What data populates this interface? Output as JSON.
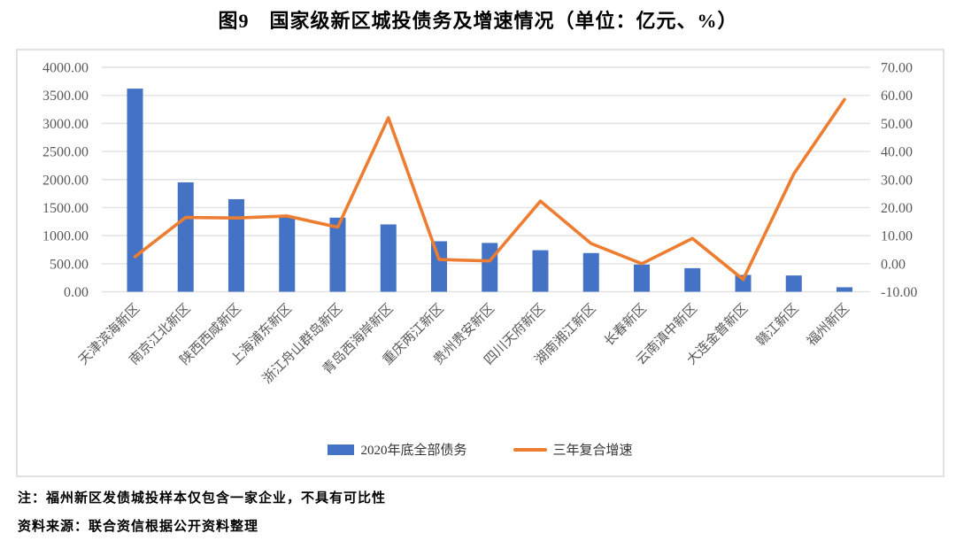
{
  "title": "图9　国家级新区城投债务及增速情况（单位：亿元、%）",
  "legend": {
    "bar_label": "2020年底全部债务",
    "line_label": "三年复合增速"
  },
  "notes": {
    "note1": "注：福州新区发债城投样本仅包含一家企业，不具有可比性",
    "source": "资料来源：联合资信根据公开资料整理"
  },
  "colors": {
    "bar": "#4472C4",
    "line": "#ED7D31",
    "grid": "#E2E2E2",
    "axis_text": "#595959",
    "border": "#E2E2E2"
  },
  "chart_data": {
    "type": "bar",
    "subtype": "bar+line combo, dual axis",
    "title": "图9　国家级新区城投债务及增速情况（单位：亿元、%）",
    "grid": true,
    "legend_position": "bottom",
    "categories": [
      "天津滨海新区",
      "南京江北新区",
      "陕西西咸新区",
      "上海浦东新区",
      "浙江舟山群岛新区",
      "青岛西海岸新区",
      "重庆两江新区",
      "贵州贵安新区",
      "四川天府新区",
      "湖南湘江新区",
      "长春新区",
      "云南滇中新区",
      "大连金普新区",
      "赣江新区",
      "福州新区"
    ],
    "series": [
      {
        "name": "2020年底全部债务",
        "type": "bar",
        "axis": "left",
        "unit": "亿元",
        "values": [
          3620,
          1950,
          1650,
          1330,
          1320,
          1200,
          900,
          870,
          740,
          690,
          485,
          420,
          300,
          290,
          80
        ]
      },
      {
        "name": "三年复合增速",
        "type": "line",
        "axis": "right",
        "unit": "%",
        "values": [
          2.5,
          16.5,
          16.3,
          17.0,
          13.0,
          52.0,
          1.5,
          1.0,
          22.3,
          7.2,
          0.0,
          9.0,
          -5.6,
          32.0,
          58.5
        ]
      }
    ],
    "left_axis": {
      "min": 0,
      "max": 4000,
      "ticks": [
        "4000.00",
        "3500.00",
        "3000.00",
        "2500.00",
        "2000.00",
        "1500.00",
        "1000.00",
        "500.00",
        "0.00"
      ]
    },
    "right_axis": {
      "min": -10,
      "max": 70,
      "ticks": [
        "70.00",
        "60.00",
        "50.00",
        "40.00",
        "30.00",
        "20.00",
        "10.00",
        "0.00",
        "-10.00"
      ]
    }
  }
}
